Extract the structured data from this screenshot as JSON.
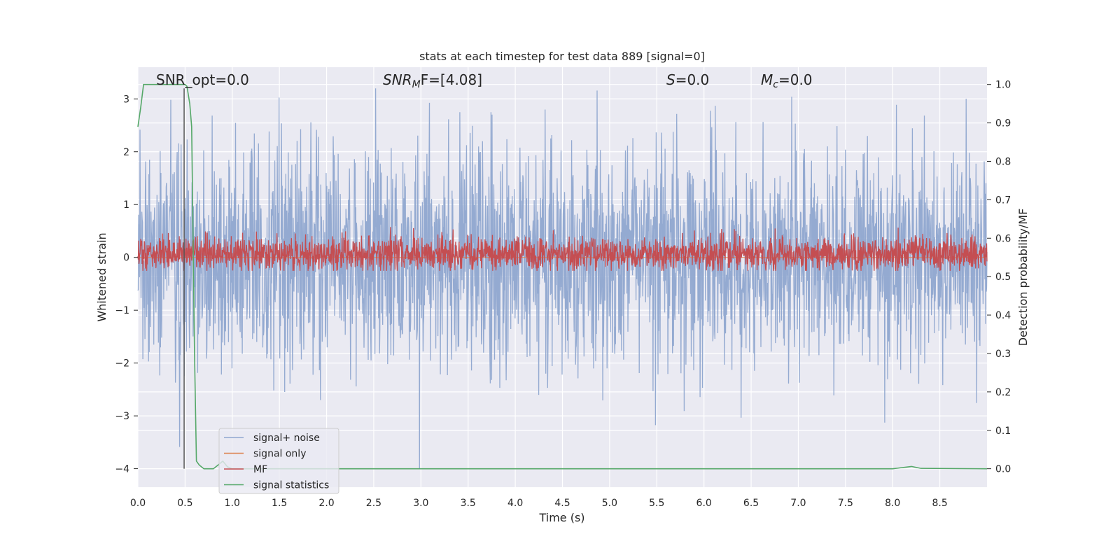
{
  "chart_data": {
    "type": "line",
    "title": "stats at each timestep for test data 889 [signal=0]",
    "xlabel": "Time (s)",
    "ylabel_left": "Whitened strain",
    "ylabel_right": "Detection probability/MF",
    "xlim": [
      0.0,
      9.0
    ],
    "ylim_left": [
      -4.35,
      3.6
    ],
    "ylim_right": [
      -0.048,
      1.045
    ],
    "x_ticks": [
      "0.0",
      "0.5",
      "1.0",
      "1.5",
      "2.0",
      "2.5",
      "3.0",
      "3.5",
      "4.0",
      "4.5",
      "5.0",
      "5.5",
      "6.0",
      "6.5",
      "7.0",
      "7.5",
      "8.0",
      "8.5"
    ],
    "y_left_ticks": [
      "3",
      "2",
      "1",
      "0",
      "−1",
      "−2",
      "−3",
      "−4"
    ],
    "y_right_ticks": [
      "1.0",
      "0.9",
      "0.8",
      "0.7",
      "0.6",
      "0.5",
      "0.4",
      "0.3",
      "0.2",
      "0.1",
      "0.0"
    ],
    "grid": true,
    "legend_position": "lower-left",
    "annotations": {
      "snr_opt": "SNR_opt=0.0",
      "snr_mf_main": "SNR",
      "snr_mf_sub": "M",
      "snr_mf_tail": "F=[4.08]",
      "s_main": "S",
      "s_tail": "=0.0",
      "mc_main": "M",
      "mc_sub": "c",
      "mc_tail": "=0.0"
    },
    "series": [
      {
        "name": "signal+ noise",
        "color": "#8fa6cf",
        "axis": "left",
        "kind": "noise",
        "approx_std": 1.0
      },
      {
        "name": "signal only",
        "color": "#dd8452",
        "axis": "left",
        "kind": "constant",
        "value": 0.0
      },
      {
        "name": "MF",
        "color": "#c44e52",
        "axis": "right",
        "kind": "noise",
        "approx_baseline": 0.56,
        "approx_peak": 0.68
      },
      {
        "name": "signal statistics",
        "color": "#55a868",
        "axis": "right",
        "x": [
          0.0,
          0.03,
          0.06,
          0.1,
          0.2,
          0.3,
          0.4,
          0.5,
          0.52,
          0.55,
          0.57,
          0.6,
          0.62,
          0.65,
          0.7,
          0.8,
          0.85,
          0.9,
          0.95,
          1.0,
          1.05,
          1.5,
          2.0,
          3.0,
          4.0,
          5.0,
          6.0,
          7.0,
          7.5,
          8.0,
          8.1,
          8.2,
          8.3,
          9.0
        ],
        "y": [
          0.89,
          0.94,
          1.0,
          1.0,
          1.0,
          1.0,
          1.0,
          1.0,
          0.995,
          0.95,
          0.89,
          0.3,
          0.02,
          0.01,
          0.0,
          0.0,
          0.01,
          0.02,
          0.005,
          0.0,
          0.0,
          0.0,
          0.0,
          0.0,
          0.0,
          0.0,
          0.0,
          0.0,
          0.0,
          0.0,
          0.003,
          0.006,
          0.001,
          0.0
        ]
      },
      {
        "name": "",
        "color": "#555555",
        "axis": "left",
        "kind": "vline",
        "x": 0.49,
        "y_range": [
          -4.0,
          3.2
        ]
      }
    ]
  }
}
